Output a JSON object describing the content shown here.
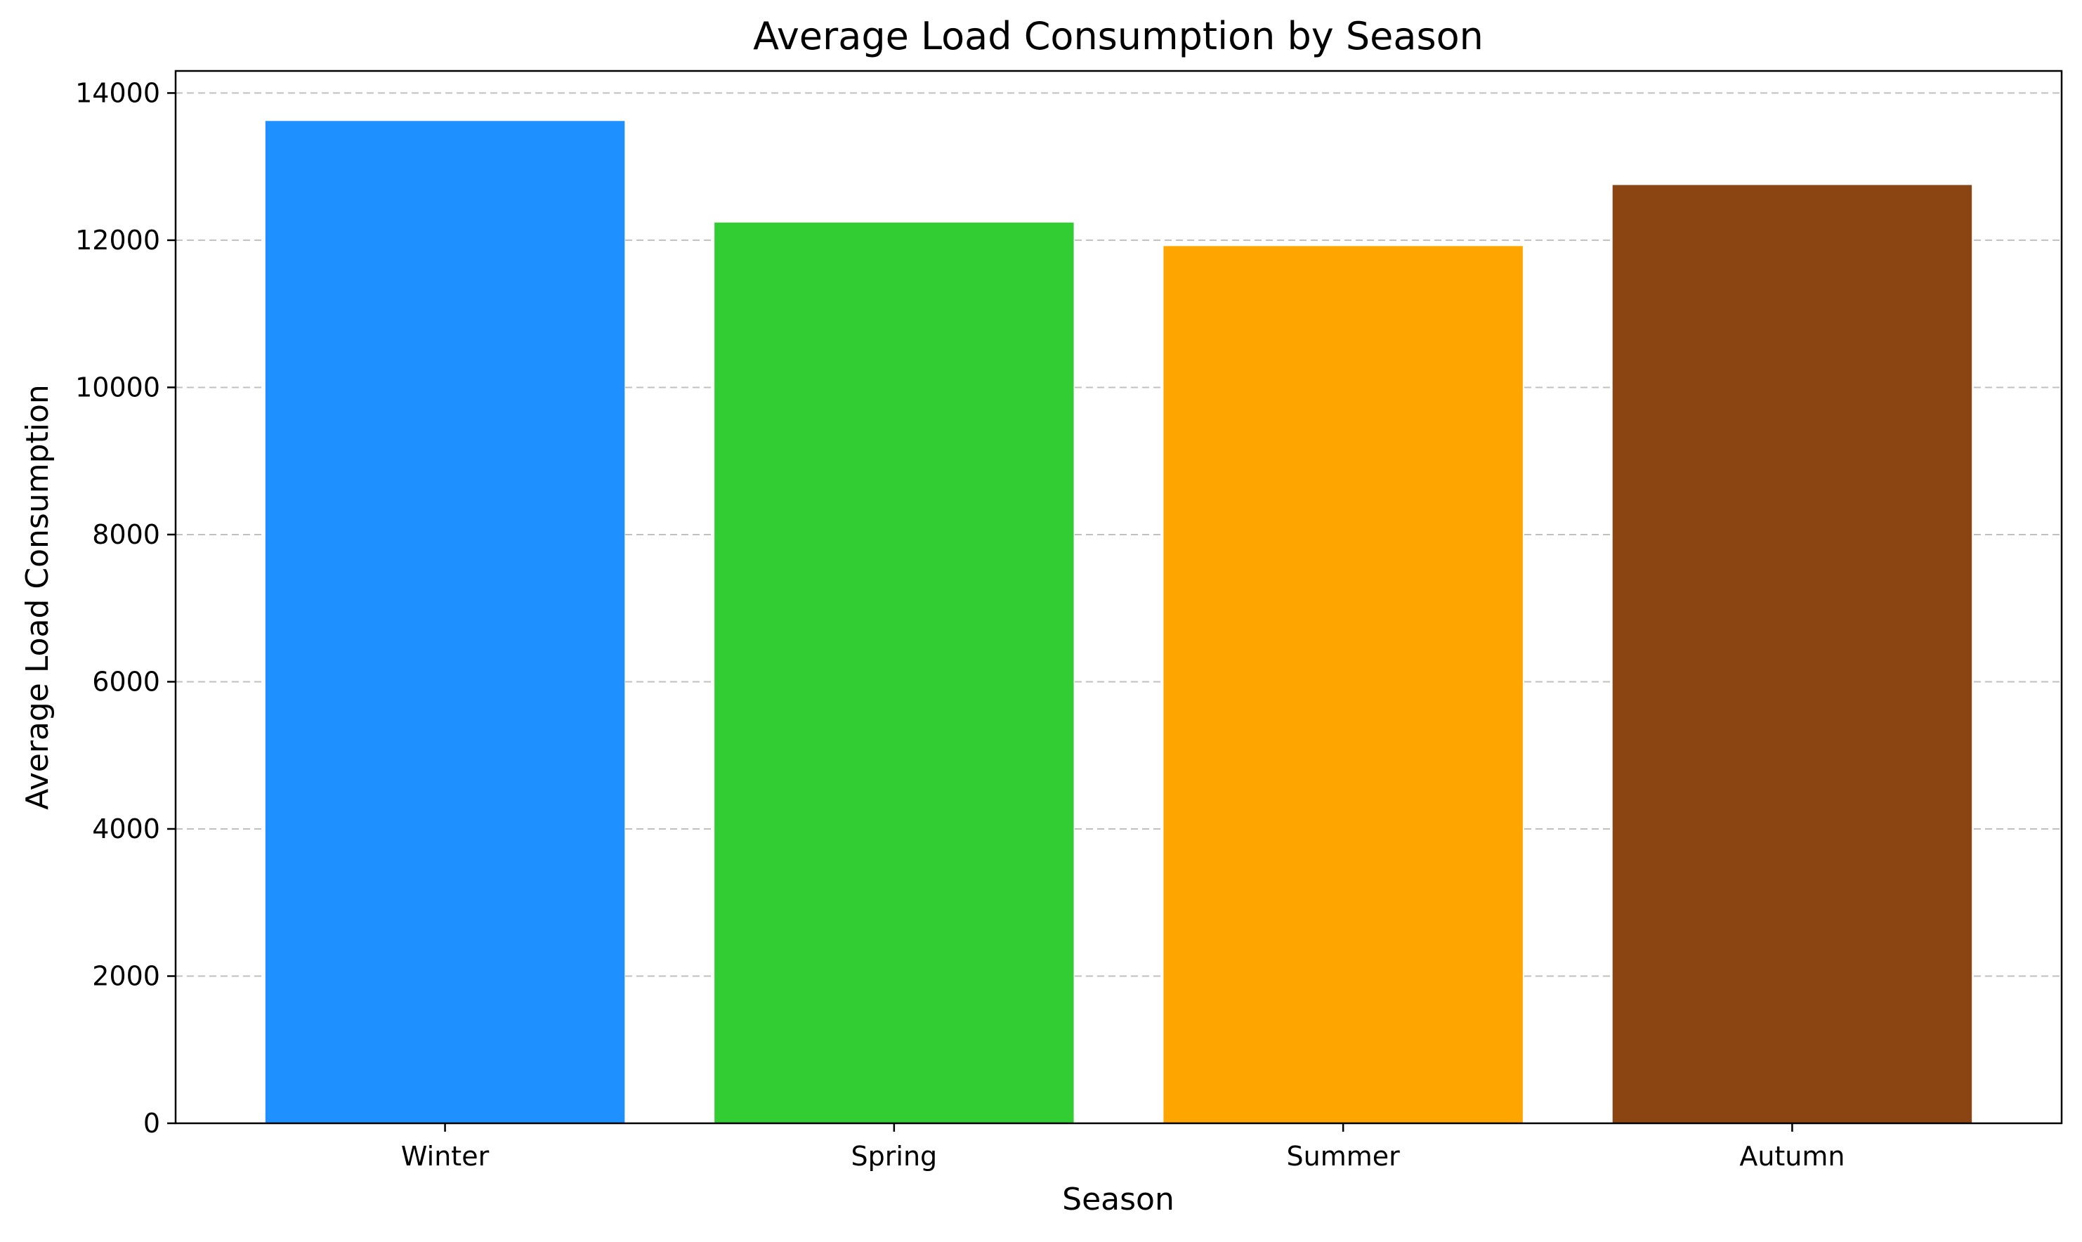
{
  "chart_data": {
    "type": "bar",
    "title": "Average Load Consumption by Season",
    "xlabel": "Season",
    "ylabel": "Average Load Consumption",
    "categories": [
      "Winter",
      "Spring",
      "Summer",
      "Autumn"
    ],
    "values": [
      13620,
      12240,
      11920,
      12750
    ],
    "colors": [
      "#1e90ff",
      "#32cd32",
      "#ffa500",
      "#8b4513"
    ],
    "ylim": [
      0,
      14300
    ],
    "yticks": [
      0,
      2000,
      4000,
      6000,
      8000,
      10000,
      12000,
      14000
    ],
    "grid": {
      "axis": "y",
      "style": "dashed",
      "color": "#c0c0c0"
    }
  }
}
